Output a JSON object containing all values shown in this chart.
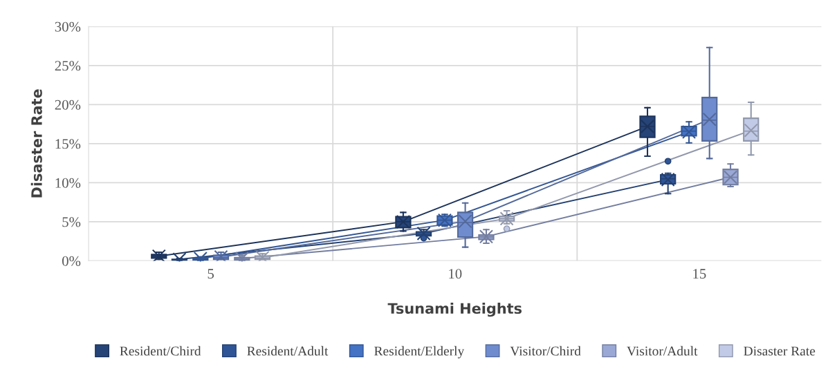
{
  "chart_data": {
    "type": "box",
    "xlabel": "Tsunami Heights",
    "ylabel": "Disaster Rate",
    "xlim": [
      2.5,
      17.5
    ],
    "xticks": [
      5,
      {
        "value": 7.5,
        "label": null
      },
      10,
      {
        "value": 12.5,
        "label": null
      },
      15
    ],
    "ylim": [
      0,
      30
    ],
    "yticks": [
      {
        "value": 0,
        "label": "0%"
      },
      {
        "value": 5,
        "label": "5%"
      },
      {
        "value": 10,
        "label": "10%"
      },
      {
        "value": 15,
        "label": "15%"
      },
      {
        "value": 20,
        "label": "20%"
      },
      {
        "value": 25,
        "label": "25%"
      },
      {
        "value": 30,
        "label": "30%"
      }
    ],
    "grid": true,
    "legend": "bottom",
    "series": [
      {
        "name": "Resident/Chird",
        "marker": "cross",
        "color": "#264478",
        "x": [
          3.94,
          8.94,
          13.94
        ],
        "boxes": [
          {
            "low": 0.2,
            "q1": 0.35,
            "median": 0.6,
            "q3": 0.8,
            "high": 1.1,
            "mean": 0.6
          },
          {
            "low": 3.8,
            "q1": 4.25,
            "median": 5.0,
            "q3": 5.65,
            "high": 6.2,
            "mean": 5.0
          },
          {
            "low": 13.4,
            "q1": 15.8,
            "median": 17.2,
            "q3": 18.5,
            "high": 19.6,
            "mean": 17.2
          }
        ]
      },
      {
        "name": "Resident/Adult",
        "marker": "cross",
        "color": "#2f5597",
        "x": [
          4.36,
          9.36,
          14.36
        ],
        "boxes": [
          {
            "low": 0,
            "q1": 0.1,
            "median": 0.1,
            "q3": 0.2,
            "high": 0.3,
            "mean": 0.2
          },
          {
            "low": 3.1,
            "q1": 3.2,
            "median": 3.4,
            "q3": 3.7,
            "high": 4.0,
            "mean": 3.5,
            "outliers": [
              2.9
            ]
          },
          {
            "low": 8.6,
            "q1": 9.85,
            "median": 10.5,
            "q3": 11.0,
            "high": 11.2,
            "mean": 10.4,
            "outliers": [
              12.75
            ]
          }
        ]
      },
      {
        "name": "Resident/Elderly",
        "marker": "cross",
        "color": "#4472c4",
        "x": [
          4.79,
          9.79,
          14.79
        ],
        "boxes": [
          {
            "low": 0,
            "q1": 0.1,
            "median": 0.2,
            "q3": 0.35,
            "high": 0.5,
            "mean": 0.3
          },
          {
            "low": 4.45,
            "q1": 4.6,
            "median": 5.2,
            "q3": 5.75,
            "high": 5.95,
            "mean": 5.2
          },
          {
            "low": 15.1,
            "q1": 16.0,
            "median": 16.6,
            "q3": 17.2,
            "high": 17.8,
            "mean": 16.5
          }
        ]
      },
      {
        "name": "Visitor/Chird",
        "marker": "cross",
        "color": "#6f8ccf",
        "x": [
          5.21,
          10.21,
          15.21
        ],
        "boxes": [
          {
            "low": 0.2,
            "q1": 0.2,
            "median": 0.4,
            "q3": 0.7,
            "high": 1.1,
            "mean": 0.5
          },
          {
            "low": 1.75,
            "q1": 3.05,
            "median": 4.9,
            "q3": 6.2,
            "high": 7.4,
            "mean": 5.05
          },
          {
            "low": 13.1,
            "q1": 15.35,
            "median": 18.0,
            "q3": 20.9,
            "high": 27.3,
            "mean": 18.1
          }
        ]
      },
      {
        "name": "Visitor/Adult",
        "marker": "cross",
        "color": "#9aa8d6",
        "x": [
          5.64,
          10.64,
          15.64
        ],
        "boxes": [
          {
            "low": 0,
            "q1": 0.1,
            "median": 0.2,
            "q3": 0.4,
            "high": 0.7,
            "mean": 0.3
          },
          {
            "low": 2.25,
            "q1": 2.75,
            "median": 3.05,
            "q3": 3.3,
            "high": 4.0,
            "mean": 3.1
          },
          {
            "low": 9.5,
            "q1": 9.75,
            "median": 10.7,
            "q3": 11.7,
            "high": 12.4,
            "mean": 10.7
          }
        ]
      },
      {
        "name": "Disaster Rate",
        "marker": "cross",
        "color": "#c1cae6",
        "x": [
          6.06,
          11.06,
          16.06
        ],
        "boxes": [
          {
            "low": 0.2,
            "q1": 0.2,
            "median": 0.35,
            "q3": 0.6,
            "high": 0.9,
            "mean": 0.4
          },
          {
            "low": 4.75,
            "q1": 5.1,
            "median": 5.4,
            "q3": 5.7,
            "high": 6.4,
            "mean": 5.4,
            "outliers": [
              4.1
            ]
          },
          {
            "low": 13.55,
            "q1": 15.35,
            "median": 16.6,
            "q3": 18.25,
            "high": 20.3,
            "mean": 16.7
          }
        ]
      },
      {
        "type": "line",
        "color": "#1c335a",
        "line_style": "solid",
        "x": [
          3.94,
          8.94,
          13.94
        ],
        "values": [
          0.6,
          5.0,
          17.2
        ]
      },
      {
        "type": "line",
        "color": "#234071",
        "line_style": "solid",
        "x": [
          4.36,
          9.36,
          14.36
        ],
        "values": [
          0.2,
          3.5,
          10.4
        ]
      },
      {
        "type": "line",
        "color": "#335693",
        "line_style": "solid",
        "x": [
          4.79,
          9.79,
          14.79
        ],
        "values": [
          0.3,
          5.2,
          16.5
        ]
      },
      {
        "type": "line",
        "color": "#53699b",
        "line_style": "solid",
        "x": [
          5.21,
          10.21,
          15.21
        ],
        "values": [
          0.5,
          5.05,
          18.1
        ]
      },
      {
        "type": "line",
        "color": "#737ea0",
        "line_style": "solid",
        "x": [
          5.64,
          10.64,
          15.64
        ],
        "values": [
          0.3,
          3.1,
          10.7
        ]
      },
      {
        "type": "line",
        "color": "#9197ac",
        "line_style": "solid",
        "x": [
          6.06,
          11.06,
          16.06
        ],
        "values": [
          0.4,
          5.4,
          16.7
        ]
      }
    ]
  }
}
